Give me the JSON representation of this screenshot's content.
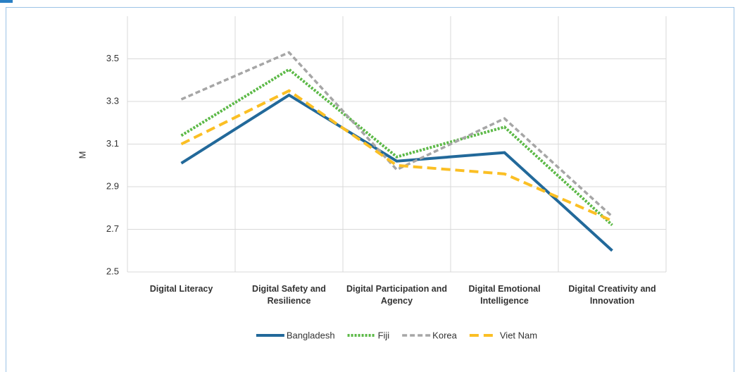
{
  "chart_data": {
    "type": "line",
    "y_label": "M",
    "categories": [
      "Digital Literacy",
      "Digital Safety and Resilience",
      "Digital Participation and Agency",
      "Digital Emotional Intelligence",
      "Digital Creativity and Innovation"
    ],
    "series": [
      {
        "name": "Bangladesh",
        "color": "#22699a",
        "line_style": "solid",
        "values": [
          3.01,
          3.33,
          3.02,
          3.06,
          2.6
        ]
      },
      {
        "name": "Fiji",
        "color": "#5cb947",
        "line_style": "dotted",
        "values": [
          3.14,
          3.45,
          3.04,
          3.18,
          2.72
        ]
      },
      {
        "name": "Korea",
        "color": "#a6a6a6",
        "line_style": "dashed",
        "values": [
          3.31,
          3.53,
          2.98,
          3.22,
          2.76
        ]
      },
      {
        "name": "Viet Nam",
        "color": "#fbbf24",
        "line_style": "long-dash",
        "values": [
          3.1,
          3.35,
          3.0,
          2.96,
          2.74
        ]
      }
    ],
    "ylim": [
      2.5,
      3.7
    ],
    "yticks": [
      2.5,
      2.7,
      2.9,
      3.1,
      3.3,
      3.5
    ],
    "grid": true,
    "legend": "bottom"
  }
}
